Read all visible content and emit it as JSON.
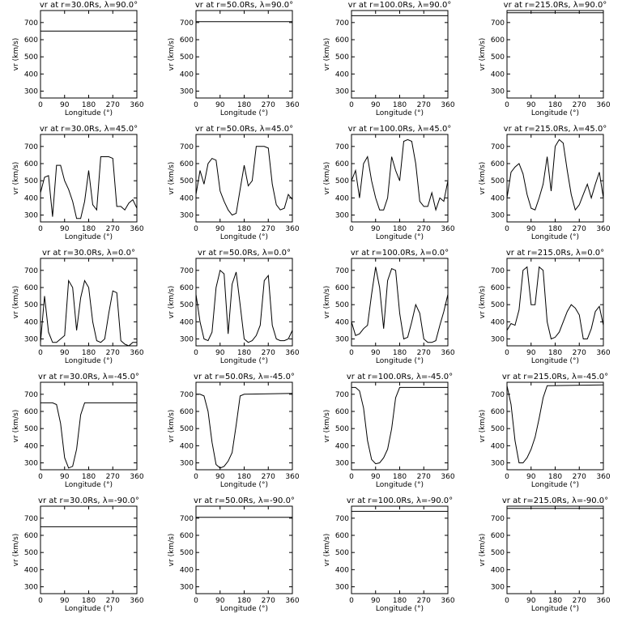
{
  "chart_data": [
    {
      "type": "line",
      "title": "vr at r=30.0Rs, λ=90.0°",
      "xlabel": "Longitude (°)",
      "ylabel": "vr (km/s)",
      "x": [
        0,
        360
      ],
      "values": [
        650,
        650
      ],
      "xlim": [
        0,
        360
      ],
      "ylim": [
        260,
        770
      ],
      "xticks": [
        0,
        90,
        180,
        270,
        360
      ],
      "yticks": [
        300,
        400,
        500,
        600,
        700
      ],
      "color": "#000000"
    },
    {
      "type": "line",
      "title": "vr at r=50.0Rs, λ=90.0°",
      "xlabel": "Longitude (°)",
      "ylabel": "vr (km/s)",
      "x": [
        0,
        360
      ],
      "values": [
        705,
        705
      ],
      "xlim": [
        0,
        360
      ],
      "ylim": [
        260,
        770
      ],
      "xticks": [
        0,
        90,
        180,
        270,
        360
      ],
      "yticks": [
        300,
        400,
        500,
        600,
        700
      ],
      "color": "#000000"
    },
    {
      "type": "line",
      "title": "vr at r=100.0Rs, λ=90.0°",
      "xlabel": "Longitude (°)",
      "ylabel": "vr (km/s)",
      "x": [
        0,
        360
      ],
      "values": [
        740,
        740
      ],
      "xlim": [
        0,
        360
      ],
      "ylim": [
        260,
        770
      ],
      "xticks": [
        0,
        90,
        180,
        270,
        360
      ],
      "yticks": [
        300,
        400,
        500,
        600,
        700
      ],
      "color": "#000000"
    },
    {
      "type": "line",
      "title": "vr at r=215.0Rs, λ=90.0°",
      "xlabel": "Longitude (°)",
      "ylabel": "vr (km/s)",
      "x": [
        0,
        360
      ],
      "values": [
        757,
        757
      ],
      "xlim": [
        0,
        360
      ],
      "ylim": [
        260,
        770
      ],
      "xticks": [
        0,
        90,
        180,
        270,
        360
      ],
      "yticks": [
        300,
        400,
        500,
        600,
        700
      ],
      "color": "#000000"
    },
    {
      "type": "line",
      "title": "vr at r=30.0Rs, λ=45.0°",
      "xlabel": "Longitude (°)",
      "ylabel": "vr (km/s)",
      "x": [
        0,
        15,
        30,
        45,
        60,
        75,
        90,
        105,
        120,
        135,
        150,
        165,
        180,
        195,
        210,
        225,
        240,
        255,
        270,
        285,
        300,
        315,
        330,
        345,
        360
      ],
      "values": [
        430,
        520,
        530,
        290,
        590,
        590,
        500,
        450,
        380,
        280,
        280,
        380,
        560,
        360,
        330,
        640,
        640,
        640,
        630,
        350,
        350,
        330,
        370,
        390,
        340
      ],
      "xlim": [
        0,
        360
      ],
      "ylim": [
        260,
        770
      ],
      "xticks": [
        0,
        90,
        180,
        270,
        360
      ],
      "yticks": [
        300,
        400,
        500,
        600,
        700
      ],
      "color": "#000000"
    },
    {
      "type": "line",
      "title": "vr at r=50.0Rs, λ=45.0°",
      "xlabel": "Longitude (°)",
      "ylabel": "vr (km/s)",
      "x": [
        0,
        15,
        30,
        45,
        60,
        75,
        90,
        105,
        120,
        135,
        150,
        165,
        180,
        195,
        210,
        225,
        240,
        255,
        270,
        285,
        300,
        315,
        330,
        345,
        360
      ],
      "values": [
        420,
        560,
        480,
        600,
        630,
        620,
        440,
        380,
        330,
        300,
        310,
        450,
        590,
        470,
        500,
        700,
        700,
        700,
        690,
        480,
        360,
        330,
        340,
        420,
        390
      ],
      "xlim": [
        0,
        360
      ],
      "ylim": [
        260,
        770
      ],
      "xticks": [
        0,
        90,
        180,
        270,
        360
      ],
      "yticks": [
        300,
        400,
        500,
        600,
        700
      ],
      "color": "#000000"
    },
    {
      "type": "line",
      "title": "vr at r=100.0Rs, λ=45.0°",
      "xlabel": "Longitude (°)",
      "ylabel": "vr (km/s)",
      "x": [
        0,
        15,
        30,
        45,
        60,
        75,
        90,
        105,
        120,
        135,
        150,
        165,
        180,
        195,
        210,
        225,
        240,
        255,
        270,
        285,
        300,
        315,
        330,
        345,
        360
      ],
      "values": [
        500,
        560,
        400,
        600,
        640,
        500,
        400,
        330,
        330,
        400,
        640,
        560,
        500,
        730,
        740,
        730,
        600,
        380,
        350,
        350,
        430,
        330,
        400,
        380,
        500
      ],
      "xlim": [
        0,
        360
      ],
      "ylim": [
        260,
        770
      ],
      "xticks": [
        0,
        90,
        180,
        270,
        360
      ],
      "yticks": [
        300,
        400,
        500,
        600,
        700
      ],
      "color": "#000000"
    },
    {
      "type": "line",
      "title": "vr at r=215.0Rs, λ=45.0°",
      "xlabel": "Longitude (°)",
      "ylabel": "vr (km/s)",
      "x": [
        0,
        15,
        30,
        45,
        60,
        75,
        90,
        105,
        120,
        135,
        150,
        165,
        180,
        195,
        210,
        225,
        240,
        255,
        270,
        285,
        300,
        315,
        330,
        345,
        360
      ],
      "values": [
        400,
        550,
        580,
        600,
        540,
        420,
        340,
        330,
        400,
        480,
        640,
        440,
        700,
        740,
        720,
        560,
        420,
        330,
        360,
        420,
        480,
        400,
        480,
        550,
        400
      ],
      "xlim": [
        0,
        360
      ],
      "ylim": [
        260,
        770
      ],
      "xticks": [
        0,
        90,
        180,
        270,
        360
      ],
      "yticks": [
        300,
        400,
        500,
        600,
        700
      ],
      "color": "#000000"
    },
    {
      "type": "line",
      "title": "vr at r=30.0Rs, λ=0.0°",
      "xlabel": "Longitude (°)",
      "ylabel": "vr (km/s)",
      "x": [
        0,
        15,
        30,
        45,
        60,
        75,
        90,
        105,
        120,
        135,
        150,
        165,
        180,
        195,
        210,
        225,
        240,
        255,
        270,
        285,
        300,
        315,
        330,
        345,
        360
      ],
      "values": [
        280,
        550,
        340,
        280,
        280,
        300,
        320,
        640,
        600,
        350,
        540,
        640,
        600,
        400,
        290,
        280,
        300,
        450,
        580,
        570,
        290,
        270,
        260,
        280,
        280
      ],
      "xlim": [
        0,
        360
      ],
      "ylim": [
        260,
        770
      ],
      "xticks": [
        0,
        90,
        180,
        270,
        360
      ],
      "yticks": [
        300,
        400,
        500,
        600,
        700
      ],
      "color": "#000000"
    },
    {
      "type": "line",
      "title": "vr at r=50.0Rs, λ=0.0°",
      "xlabel": "Longitude (°)",
      "ylabel": "vr (km/s)",
      "x": [
        0,
        15,
        30,
        45,
        60,
        75,
        90,
        105,
        120,
        135,
        150,
        165,
        180,
        195,
        210,
        225,
        240,
        255,
        270,
        285,
        300,
        315,
        330,
        345,
        360
      ],
      "values": [
        560,
        400,
        300,
        290,
        340,
        600,
        700,
        680,
        330,
        620,
        690,
        500,
        300,
        280,
        290,
        320,
        380,
        640,
        670,
        380,
        300,
        290,
        290,
        300,
        350
      ],
      "xlim": [
        0,
        360
      ],
      "ylim": [
        260,
        770
      ],
      "xticks": [
        0,
        90,
        180,
        270,
        360
      ],
      "yticks": [
        300,
        400,
        500,
        600,
        700
      ],
      "color": "#000000"
    },
    {
      "type": "line",
      "title": "vr at r=100.0Rs, λ=0.0°",
      "xlabel": "Longitude (°)",
      "ylabel": "vr (km/s)",
      "x": [
        0,
        15,
        30,
        45,
        60,
        75,
        90,
        105,
        120,
        135,
        150,
        165,
        180,
        195,
        210,
        225,
        240,
        255,
        270,
        285,
        300,
        315,
        330,
        345,
        360
      ],
      "values": [
        400,
        320,
        330,
        360,
        380,
        560,
        720,
        600,
        360,
        640,
        710,
        700,
        450,
        300,
        310,
        400,
        500,
        450,
        300,
        280,
        280,
        290,
        380,
        460,
        560
      ],
      "xlim": [
        0,
        360
      ],
      "ylim": [
        260,
        770
      ],
      "xticks": [
        0,
        90,
        180,
        270,
        360
      ],
      "yticks": [
        300,
        400,
        500,
        600,
        700
      ],
      "color": "#000000"
    },
    {
      "type": "line",
      "title": "vr at r=215.0Rs, λ=0.0°",
      "xlabel": "Longitude (°)",
      "ylabel": "vr (km/s)",
      "x": [
        0,
        15,
        30,
        45,
        60,
        75,
        90,
        105,
        120,
        135,
        150,
        165,
        180,
        195,
        210,
        225,
        240,
        255,
        270,
        285,
        300,
        315,
        330,
        345,
        360
      ],
      "values": [
        350,
        390,
        380,
        470,
        700,
        720,
        500,
        500,
        720,
        700,
        400,
        300,
        310,
        340,
        400,
        460,
        500,
        480,
        440,
        300,
        300,
        360,
        460,
        490,
        380
      ],
      "xlim": [
        0,
        360
      ],
      "ylim": [
        260,
        770
      ],
      "xticks": [
        0,
        90,
        180,
        270,
        360
      ],
      "yticks": [
        300,
        400,
        500,
        600,
        700
      ],
      "color": "#000000"
    },
    {
      "type": "line",
      "title": "vr at r=30.0Rs, λ=-45.0°",
      "xlabel": "Longitude (°)",
      "ylabel": "vr (km/s)",
      "x": [
        0,
        15,
        30,
        45,
        60,
        75,
        90,
        105,
        120,
        135,
        150,
        165,
        180,
        360
      ],
      "values": [
        650,
        650,
        650,
        650,
        640,
        530,
        330,
        270,
        280,
        380,
        580,
        650,
        650,
        650
      ],
      "xlim": [
        0,
        360
      ],
      "ylim": [
        260,
        770
      ],
      "xticks": [
        0,
        90,
        180,
        270,
        360
      ],
      "yticks": [
        300,
        400,
        500,
        600,
        700
      ],
      "color": "#000000"
    },
    {
      "type": "line",
      "title": "vr at r=50.0Rs, λ=-45.0°",
      "xlabel": "Longitude (°)",
      "ylabel": "vr (km/s)",
      "x": [
        0,
        15,
        30,
        45,
        60,
        75,
        90,
        105,
        120,
        135,
        150,
        165,
        180,
        360
      ],
      "values": [
        700,
        700,
        690,
        600,
        420,
        290,
        270,
        280,
        310,
        360,
        520,
        690,
        700,
        705
      ],
      "xlim": [
        0,
        360
      ],
      "ylim": [
        260,
        770
      ],
      "xticks": [
        0,
        90,
        180,
        270,
        360
      ],
      "yticks": [
        300,
        400,
        500,
        600,
        700
      ],
      "color": "#000000"
    },
    {
      "type": "line",
      "title": "vr at r=100.0Rs, λ=-45.0°",
      "xlabel": "Longitude (°)",
      "ylabel": "vr (km/s)",
      "x": [
        0,
        15,
        30,
        45,
        60,
        75,
        90,
        105,
        120,
        135,
        150,
        165,
        180,
        360
      ],
      "values": [
        740,
        740,
        720,
        620,
        430,
        320,
        295,
        300,
        330,
        380,
        500,
        680,
        740,
        740
      ],
      "xlim": [
        0,
        360
      ],
      "ylim": [
        260,
        770
      ],
      "xticks": [
        0,
        90,
        180,
        270,
        360
      ],
      "yticks": [
        300,
        400,
        500,
        600,
        700
      ],
      "color": "#000000"
    },
    {
      "type": "line",
      "title": "vr at r=215.0Rs, λ=-45.0°",
      "xlabel": "Longitude (°)",
      "ylabel": "vr (km/s)",
      "x": [
        0,
        15,
        30,
        45,
        60,
        75,
        90,
        105,
        120,
        135,
        150,
        360
      ],
      "values": [
        750,
        640,
        430,
        300,
        300,
        330,
        380,
        450,
        560,
        680,
        750,
        755
      ],
      "xlim": [
        0,
        360
      ],
      "ylim": [
        260,
        770
      ],
      "xticks": [
        0,
        90,
        180,
        270,
        360
      ],
      "yticks": [
        300,
        400,
        500,
        600,
        700
      ],
      "color": "#000000"
    },
    {
      "type": "line",
      "title": "vr at r=30.0Rs, λ=-90.0°",
      "xlabel": "Longitude (°)",
      "ylabel": "vr (km/s)",
      "x": [
        0,
        360
      ],
      "values": [
        650,
        650
      ],
      "xlim": [
        0,
        360
      ],
      "ylim": [
        260,
        770
      ],
      "xticks": [
        0,
        90,
        180,
        270,
        360
      ],
      "yticks": [
        300,
        400,
        500,
        600,
        700
      ],
      "color": "#000000"
    },
    {
      "type": "line",
      "title": "vr at r=50.0Rs, λ=-90.0°",
      "xlabel": "Longitude (°)",
      "ylabel": "vr (km/s)",
      "x": [
        0,
        360
      ],
      "values": [
        705,
        705
      ],
      "xlim": [
        0,
        360
      ],
      "ylim": [
        260,
        770
      ],
      "xticks": [
        0,
        90,
        180,
        270,
        360
      ],
      "yticks": [
        300,
        400,
        500,
        600,
        700
      ],
      "color": "#000000"
    },
    {
      "type": "line",
      "title": "vr at r=100.0Rs, λ=-90.0°",
      "xlabel": "Longitude (°)",
      "ylabel": "vr (km/s)",
      "x": [
        0,
        360
      ],
      "values": [
        740,
        740
      ],
      "xlim": [
        0,
        360
      ],
      "ylim": [
        260,
        770
      ],
      "xticks": [
        0,
        90,
        180,
        270,
        360
      ],
      "yticks": [
        300,
        400,
        500,
        600,
        700
      ],
      "color": "#000000"
    },
    {
      "type": "line",
      "title": "vr at r=215.0Rs, λ=-90.0°",
      "xlabel": "Longitude (°)",
      "ylabel": "vr (km/s)",
      "x": [
        0,
        360
      ],
      "values": [
        757,
        757
      ],
      "xlim": [
        0,
        360
      ],
      "ylim": [
        260,
        770
      ],
      "xticks": [
        0,
        90,
        180,
        270,
        360
      ],
      "yticks": [
        300,
        400,
        500,
        600,
        700
      ],
      "color": "#000000"
    }
  ]
}
